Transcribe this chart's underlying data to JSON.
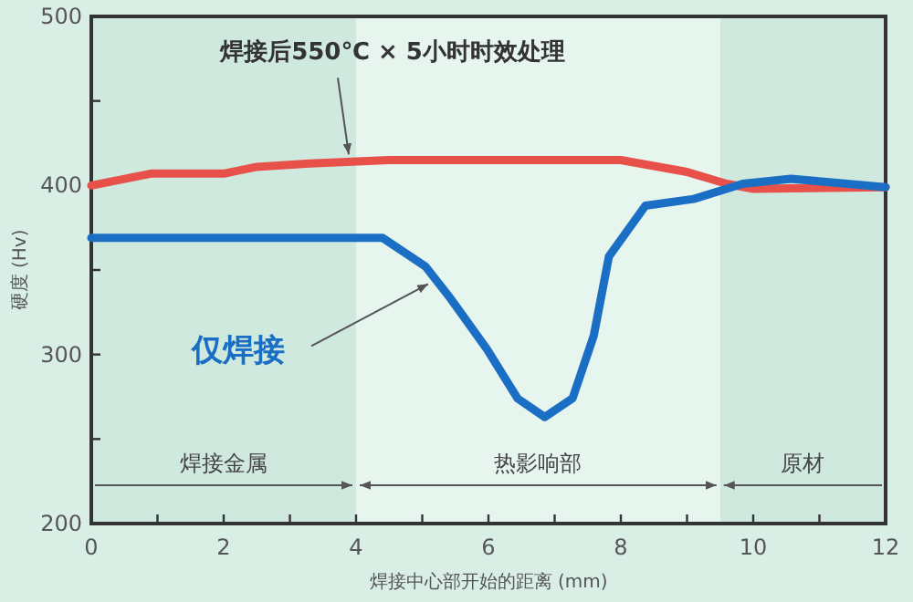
{
  "chart_data": {
    "type": "line",
    "xlabel": "焊接中心部开始的距离 (mm)",
    "ylabel": "硬度 (Hv)",
    "xlim": [
      0,
      12
    ],
    "ylim": [
      200,
      500
    ],
    "xticks": [
      0,
      {
        "value": 1,
        "label": null
      },
      2,
      {
        "value": 3,
        "label": null
      },
      4,
      {
        "value": 5,
        "label": null
      },
      6,
      {
        "value": 7,
        "label": null
      },
      8,
      {
        "value": 9,
        "label": null
      },
      10,
      {
        "value": 11,
        "label": null
      },
      12
    ],
    "yticks": [
      200,
      {
        "value": 250,
        "label": null
      },
      300,
      {
        "value": 350,
        "label": null
      },
      400,
      {
        "value": 450,
        "label": null
      },
      500
    ],
    "grid": false,
    "marker": "none",
    "line_style": "solid",
    "series": [
      {
        "color": "#e8504a",
        "x": [
          0,
          0.9,
          2,
          2.5,
          3.3,
          4.5,
          8,
          9,
          9.6,
          10,
          12
        ],
        "values": [
          400,
          407,
          407,
          411,
          413,
          415,
          415,
          408,
          401,
          398,
          399
        ]
      },
      {
        "color": "#1a6fc4",
        "x": [
          0,
          4.4,
          5.05,
          5.43,
          5.98,
          6.44,
          6.85,
          7.27,
          7.59,
          7.82,
          8.37,
          9.1,
          9.84,
          10.57,
          12
        ],
        "values": [
          369,
          369,
          352,
          333,
          303,
          274,
          263,
          274,
          311,
          358,
          388,
          392,
          401,
          404,
          399
        ]
      }
    ],
    "bands": [
      {
        "axis": "x",
        "from": 0,
        "to": 4,
        "label": "焊接金属",
        "color": "#cfe9de"
      },
      {
        "axis": "x",
        "from": 4,
        "to": 9.5,
        "label": "热影响部",
        "color": "#e6f5ee"
      },
      {
        "axis": "x",
        "from": 9.5,
        "to": 12,
        "label": "原材",
        "color": "#cfe9de"
      }
    ],
    "annotations": [
      {
        "text": "焊接后550℃ × 5小时时效处理",
        "x": 4,
        "y": 413
      },
      {
        "text": "仅焊接",
        "x": 5.2,
        "y": 345
      }
    ]
  }
}
